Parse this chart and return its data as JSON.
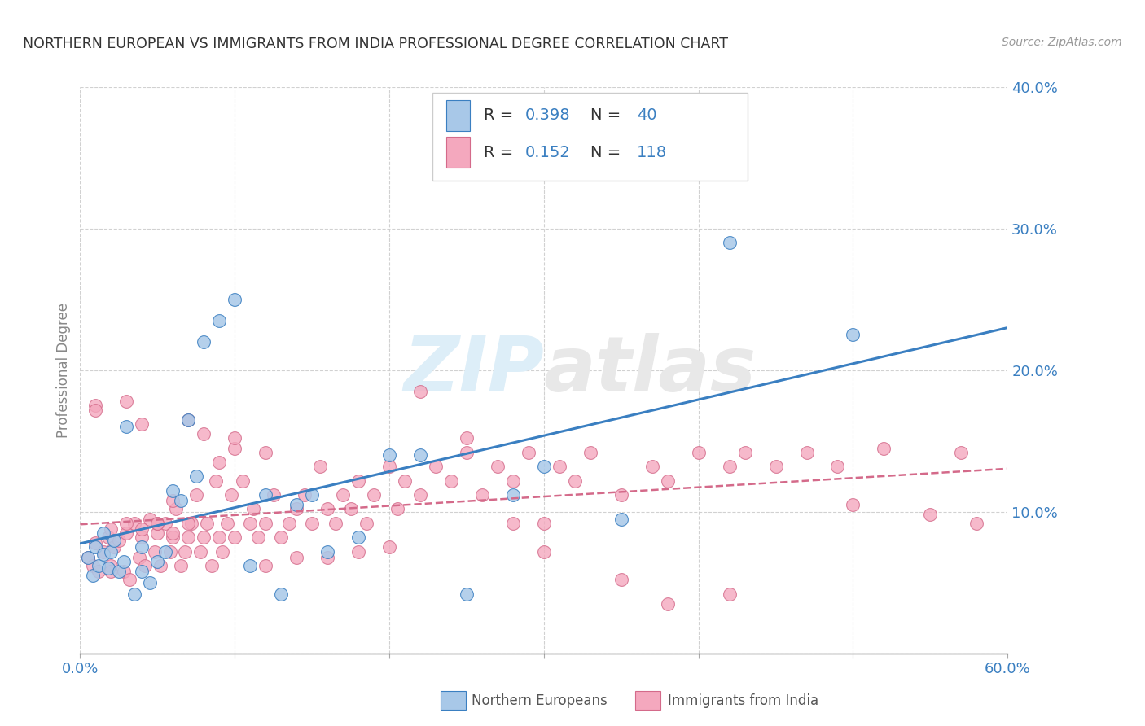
{
  "title": "NORTHERN EUROPEAN VS IMMIGRANTS FROM INDIA PROFESSIONAL DEGREE CORRELATION CHART",
  "source": "Source: ZipAtlas.com",
  "ylabel": "Professional Degree",
  "xlim": [
    0.0,
    0.6
  ],
  "ylim": [
    0.0,
    0.4
  ],
  "xticks": [
    0.0,
    0.1,
    0.2,
    0.3,
    0.4,
    0.5,
    0.6
  ],
  "yticks": [
    0.0,
    0.1,
    0.2,
    0.3,
    0.4
  ],
  "xtick_labels": [
    "0.0%",
    "",
    "",
    "",
    "",
    "",
    "60.0%"
  ],
  "ytick_labels_right": [
    "",
    "10.0%",
    "20.0%",
    "30.0%",
    "40.0%"
  ],
  "blue_R": 0.398,
  "blue_N": 40,
  "pink_R": 0.152,
  "pink_N": 118,
  "blue_color": "#a8c8e8",
  "pink_color": "#f4a8be",
  "blue_line_color": "#3a7fc1",
  "pink_line_color": "#d46a8a",
  "background_color": "#ffffff",
  "grid_color": "#cccccc",
  "title_color": "#333333",
  "axis_label_color": "#888888",
  "watermark_text": "ZIPatlas",
  "watermark_color": "#ddeef8",
  "blue_legend_label": "Northern Europeans",
  "pink_legend_label": "Immigrants from India",
  "blue_scatter_x": [
    0.005,
    0.008,
    0.01,
    0.012,
    0.015,
    0.015,
    0.018,
    0.02,
    0.022,
    0.025,
    0.028,
    0.03,
    0.035,
    0.04,
    0.04,
    0.045,
    0.05,
    0.055,
    0.06,
    0.065,
    0.07,
    0.075,
    0.08,
    0.09,
    0.1,
    0.11,
    0.12,
    0.13,
    0.14,
    0.15,
    0.16,
    0.18,
    0.2,
    0.22,
    0.25,
    0.28,
    0.3,
    0.35,
    0.42,
    0.5
  ],
  "blue_scatter_y": [
    0.068,
    0.055,
    0.075,
    0.062,
    0.07,
    0.085,
    0.06,
    0.072,
    0.08,
    0.058,
    0.065,
    0.16,
    0.042,
    0.058,
    0.075,
    0.05,
    0.065,
    0.072,
    0.115,
    0.108,
    0.165,
    0.125,
    0.22,
    0.235,
    0.25,
    0.062,
    0.112,
    0.042,
    0.105,
    0.112,
    0.072,
    0.082,
    0.14,
    0.14,
    0.042,
    0.112,
    0.132,
    0.095,
    0.29,
    0.225
  ],
  "pink_scatter_x": [
    0.005,
    0.008,
    0.01,
    0.012,
    0.015,
    0.018,
    0.02,
    0.022,
    0.025,
    0.028,
    0.03,
    0.032,
    0.035,
    0.038,
    0.04,
    0.042,
    0.045,
    0.048,
    0.05,
    0.052,
    0.055,
    0.058,
    0.06,
    0.062,
    0.065,
    0.068,
    0.07,
    0.072,
    0.075,
    0.078,
    0.08,
    0.082,
    0.085,
    0.088,
    0.09,
    0.092,
    0.095,
    0.098,
    0.1,
    0.105,
    0.11,
    0.112,
    0.115,
    0.12,
    0.125,
    0.13,
    0.135,
    0.14,
    0.145,
    0.15,
    0.155,
    0.16,
    0.165,
    0.17,
    0.175,
    0.18,
    0.185,
    0.19,
    0.2,
    0.205,
    0.21,
    0.22,
    0.23,
    0.24,
    0.25,
    0.26,
    0.27,
    0.28,
    0.29,
    0.3,
    0.31,
    0.32,
    0.33,
    0.35,
    0.37,
    0.38,
    0.4,
    0.42,
    0.43,
    0.45,
    0.47,
    0.49,
    0.5,
    0.52,
    0.55,
    0.57,
    0.58,
    0.01,
    0.02,
    0.03,
    0.04,
    0.05,
    0.06,
    0.07,
    0.08,
    0.09,
    0.1,
    0.12,
    0.14,
    0.16,
    0.18,
    0.2,
    0.22,
    0.25,
    0.28,
    0.3,
    0.35,
    0.38,
    0.42,
    0.01,
    0.02,
    0.03,
    0.04,
    0.05,
    0.06,
    0.07,
    0.1,
    0.12
  ],
  "pink_scatter_y": [
    0.068,
    0.062,
    0.078,
    0.058,
    0.072,
    0.082,
    0.062,
    0.075,
    0.08,
    0.058,
    0.085,
    0.052,
    0.092,
    0.068,
    0.082,
    0.062,
    0.095,
    0.072,
    0.085,
    0.062,
    0.092,
    0.072,
    0.082,
    0.102,
    0.062,
    0.072,
    0.082,
    0.092,
    0.112,
    0.072,
    0.082,
    0.092,
    0.062,
    0.122,
    0.082,
    0.072,
    0.092,
    0.112,
    0.082,
    0.122,
    0.092,
    0.102,
    0.082,
    0.092,
    0.112,
    0.082,
    0.092,
    0.102,
    0.112,
    0.092,
    0.132,
    0.102,
    0.092,
    0.112,
    0.102,
    0.122,
    0.092,
    0.112,
    0.132,
    0.102,
    0.122,
    0.112,
    0.132,
    0.122,
    0.142,
    0.112,
    0.132,
    0.122,
    0.142,
    0.092,
    0.132,
    0.122,
    0.142,
    0.112,
    0.132,
    0.122,
    0.142,
    0.132,
    0.142,
    0.132,
    0.142,
    0.132,
    0.105,
    0.145,
    0.098,
    0.142,
    0.092,
    0.175,
    0.088,
    0.178,
    0.162,
    0.092,
    0.108,
    0.165,
    0.155,
    0.135,
    0.145,
    0.062,
    0.068,
    0.068,
    0.072,
    0.075,
    0.185,
    0.152,
    0.092,
    0.072,
    0.052,
    0.035,
    0.042,
    0.172,
    0.058,
    0.092,
    0.088,
    0.092,
    0.085,
    0.092,
    0.152,
    0.142
  ]
}
